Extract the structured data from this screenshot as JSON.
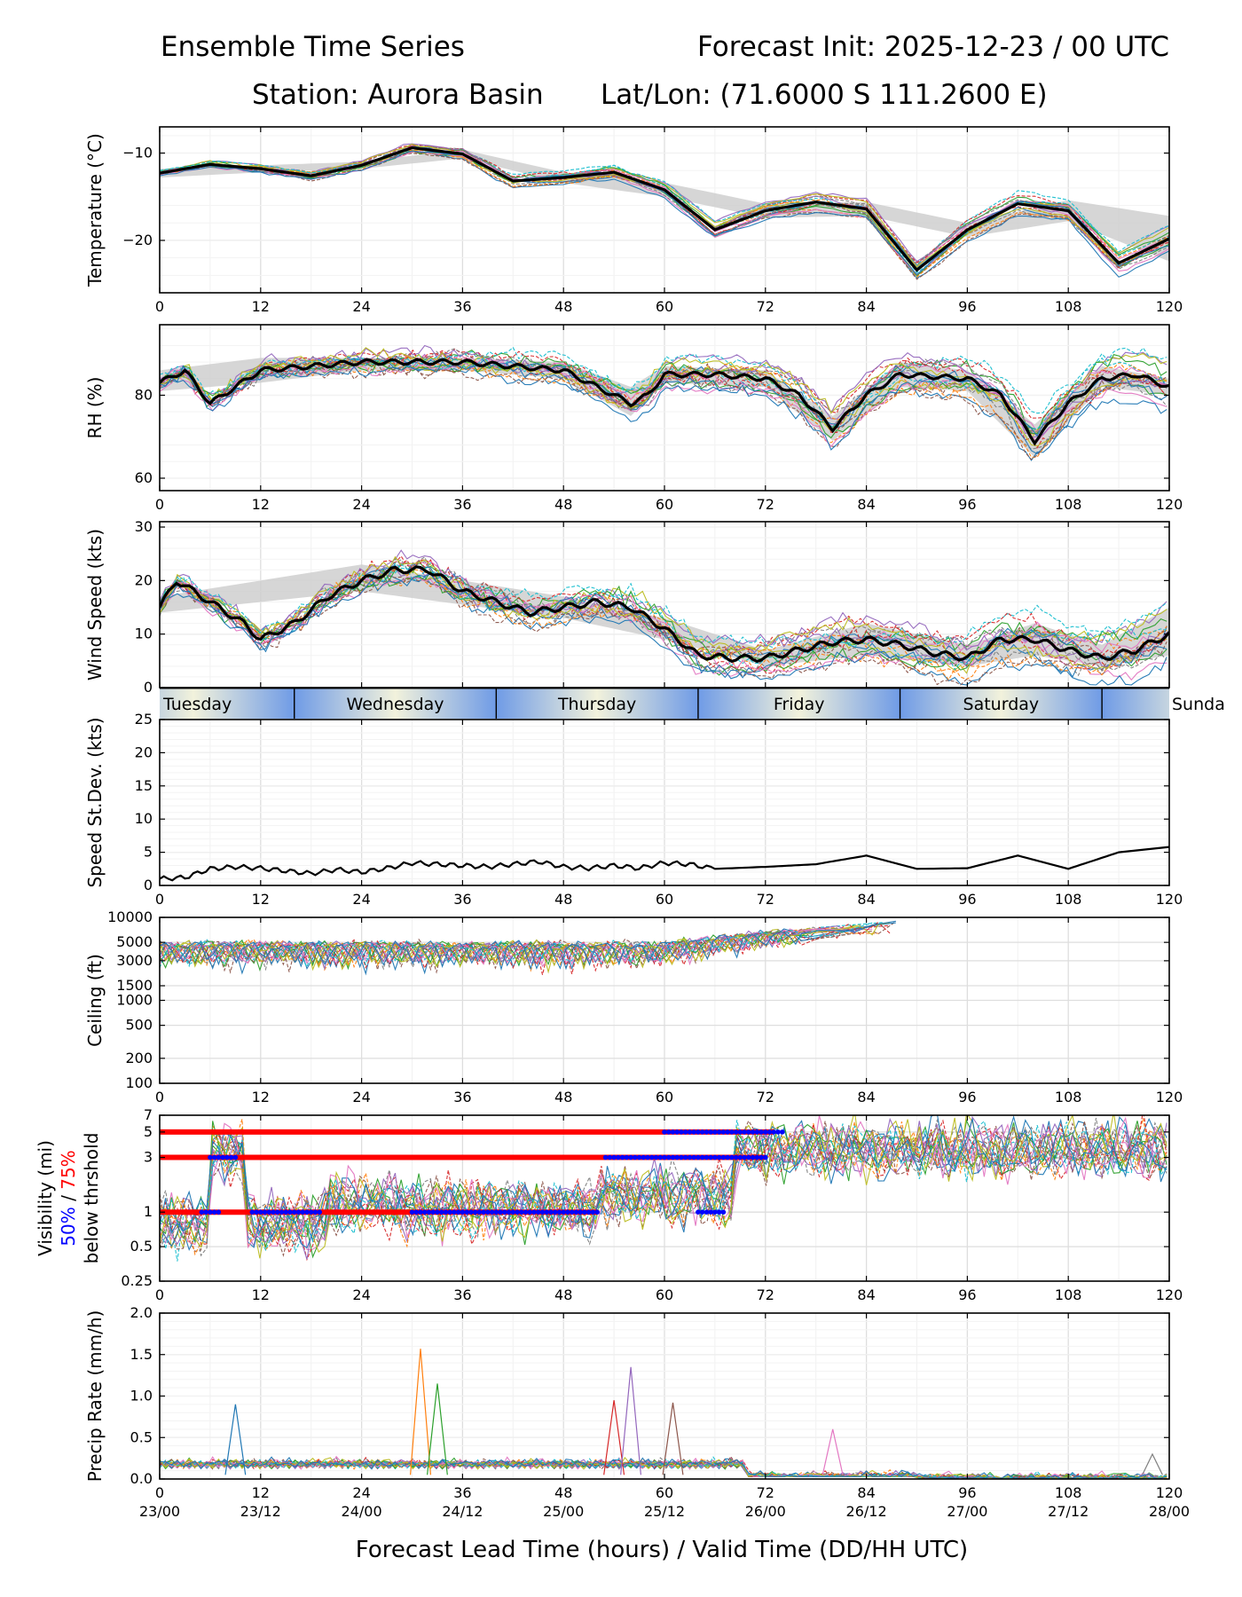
{
  "header": {
    "title_left": "Ensemble Time Series",
    "title_right": "Forecast Init: 2025-12-23 / 00 UTC",
    "station": "Station: Aurora Basin",
    "latlon": "Lat/Lon: (71.6000 S 111.2600 E)"
  },
  "colors": {
    "members": [
      "#1f77b4",
      "#ff7f0e",
      "#2ca02c",
      "#d62728",
      "#9467bd",
      "#8c564b",
      "#e377c2",
      "#7f7f7f",
      "#bcbd22",
      "#17becf"
    ],
    "mean": "#000000",
    "spread": "#cccccc",
    "threshold_50": "#0000ff",
    "threshold_75": "#ff0000",
    "day_light": "#f2f2dc",
    "day_dark": "#6f9be6"
  },
  "xaxis": {
    "lead_ticks": [
      "0",
      "12",
      "24",
      "36",
      "48",
      "60",
      "72",
      "84",
      "96",
      "108",
      "120"
    ],
    "valid_ticks": [
      "23/00",
      "23/12",
      "24/00",
      "24/12",
      "25/00",
      "25/12",
      "26/00",
      "26/12",
      "27/00",
      "27/12",
      "28/00"
    ],
    "label": "Forecast Lead Time (hours) / Valid Time (DD/HH UTC)"
  },
  "days": [
    "Tuesday",
    "Wednesday",
    "Thursday",
    "Friday",
    "Saturday",
    "Sunda"
  ],
  "chart_data": [
    {
      "type": "line",
      "id": "temperature",
      "ylabel": "Temperature (°C)",
      "yscale": "linear",
      "ylim": [
        -26,
        -7
      ],
      "yticks": [
        -10,
        -20
      ],
      "ytick_labels": [
        "−10",
        "−20"
      ],
      "mean": {
        "x": [
          0,
          6,
          12,
          18,
          24,
          30,
          36,
          42,
          48,
          54,
          60,
          66,
          72,
          78,
          84,
          90,
          96,
          102,
          108,
          114,
          120
        ],
        "y": [
          -12.3,
          -11.3,
          -11.8,
          -12.6,
          -11.4,
          -9.4,
          -10.1,
          -13.2,
          -12.8,
          -12.2,
          -14.2,
          -18.8,
          -16.6,
          -15.6,
          -16.4,
          -23.4,
          -18.8,
          -15.8,
          -16.6,
          -22.6,
          -19.8
        ]
      },
      "spread": {
        "x": [
          0,
          12,
          24,
          36,
          48,
          60,
          72,
          84,
          96,
          108,
          120
        ],
        "lo": [
          -12.8,
          -12.2,
          -11.8,
          -10.6,
          -13.4,
          -15.0,
          -17.4,
          -17.2,
          -19.6,
          -17.8,
          -22.4
        ],
        "hi": [
          -11.8,
          -11.4,
          -11.0,
          -9.6,
          -12.2,
          -13.4,
          -15.8,
          -15.6,
          -18.0,
          -15.4,
          -17.2
        ]
      },
      "members_count": 21
    },
    {
      "type": "line",
      "id": "rh",
      "ylabel": "RH (%)",
      "yscale": "linear",
      "ylim": [
        57,
        97
      ],
      "yticks": [
        60,
        80
      ],
      "ytick_labels": [
        "60",
        "80"
      ],
      "mean": {
        "x": [
          0,
          3,
          6,
          9,
          12,
          18,
          24,
          30,
          36,
          42,
          48,
          52,
          56,
          58,
          60,
          66,
          72,
          76,
          80,
          84,
          88,
          96,
          100,
          104,
          108,
          112,
          116,
          120
        ],
        "y": [
          83,
          86,
          78,
          82,
          86,
          87,
          88,
          88,
          88,
          87,
          86,
          82,
          78,
          80,
          85,
          85,
          84,
          80,
          72,
          80,
          85,
          84,
          80,
          69,
          78,
          84,
          85,
          82
        ]
      },
      "spread": {
        "x": [
          0,
          12,
          24,
          36,
          48,
          56,
          60,
          72,
          80,
          88,
          96,
          104,
          112,
          120
        ],
        "lo": [
          81,
          83,
          86,
          86,
          84,
          75,
          83,
          82,
          69,
          82,
          81,
          65,
          82,
          80
        ],
        "hi": [
          86,
          89,
          89,
          89,
          88,
          82,
          87,
          86,
          75,
          88,
          86,
          73,
          87,
          84
        ]
      },
      "members_count": 21
    },
    {
      "type": "line",
      "id": "wind",
      "ylabel": "Wind Speed (kts)",
      "yscale": "linear",
      "ylim": [
        0,
        31
      ],
      "yticks": [
        0,
        10,
        20,
        30
      ],
      "ytick_labels": [
        "0",
        "10",
        "20",
        "30"
      ],
      "mean": {
        "x": [
          0,
          2,
          4,
          6,
          8,
          10,
          12,
          16,
          20,
          24,
          28,
          32,
          36,
          40,
          44,
          48,
          52,
          56,
          60,
          64,
          68,
          72,
          76,
          80,
          84,
          88,
          92,
          96,
          100,
          104,
          108,
          112,
          116,
          120
        ],
        "y": [
          15,
          20,
          18,
          16,
          14,
          12,
          9,
          12,
          17,
          20,
          22,
          22,
          18,
          16,
          14,
          15,
          16,
          15,
          11,
          6,
          5.5,
          5.5,
          7,
          8.5,
          9,
          8,
          6.5,
          5.5,
          9,
          9,
          7,
          5.5,
          7,
          10
        ]
      },
      "spread": {
        "x": [
          0,
          24,
          48,
          60,
          72,
          84,
          96,
          104,
          112,
          120
        ],
        "lo": [
          14,
          18,
          13,
          9,
          4,
          6,
          4,
          6,
          4,
          6
        ],
        "hi": [
          17,
          23,
          17,
          13,
          7,
          12,
          8,
          12,
          8,
          15
        ]
      },
      "members_count": 21
    },
    {
      "type": "line",
      "id": "speed_stdev",
      "ylabel": "Speed St.Dev. (kts)",
      "yscale": "linear",
      "ylim": [
        0,
        25
      ],
      "yticks": [
        0,
        5,
        10,
        15,
        20,
        25
      ],
      "ytick_labels": [
        "0",
        "5",
        "10",
        "15",
        "20",
        "25"
      ],
      "series": [
        {
          "name": "Speed St.Dev.",
          "x": [
            0,
            3,
            6,
            9,
            12,
            15,
            18,
            21,
            24,
            27,
            30,
            33,
            36,
            39,
            42,
            45,
            48,
            51,
            54,
            57,
            60,
            63,
            66,
            72,
            78,
            84,
            90,
            96,
            102,
            108,
            114,
            120
          ],
          "y": [
            1.0,
            1.2,
            2.5,
            2.8,
            2.6,
            2.2,
            1.8,
            2.4,
            2.0,
            2.6,
            3.4,
            3.2,
            3.0,
            2.8,
            3.2,
            3.6,
            2.8,
            2.6,
            3.0,
            2.6,
            3.4,
            3.2,
            2.5,
            2.8,
            3.2,
            4.5,
            2.5,
            2.6,
            4.5,
            2.5,
            5.0,
            5.8
          ]
        }
      ]
    },
    {
      "type": "line",
      "id": "ceiling",
      "ylabel": "Ceiling (ft)",
      "yscale": "log",
      "ylim": [
        100,
        10000
      ],
      "yticks": [
        100,
        200,
        500,
        1000,
        1500,
        3000,
        5000,
        10000
      ],
      "ytick_labels": [
        "100",
        "200",
        "500",
        "1000",
        "1500",
        "3000",
        "5000",
        "10000"
      ],
      "members_count": 21
    },
    {
      "type": "line",
      "id": "visibility",
      "ylabel_lines": [
        "Visibility (mi)",
        "50%",
        " / ",
        "75%",
        "below thrshold"
      ],
      "yscale": "log",
      "ylim": [
        0.25,
        7
      ],
      "yticks": [
        0.25,
        0.5,
        1,
        3,
        5,
        7
      ],
      "ytick_labels": [
        "0.25",
        "0.5",
        "1",
        "3",
        "5",
        "7"
      ],
      "thresholds": [
        {
          "level": 1,
          "red_segments": [
            [
              0,
              52
            ]
          ],
          "blue_segments": [
            [
              5,
              7
            ],
            [
              11,
              19
            ],
            [
              30,
              52
            ],
            [
              64,
              67
            ]
          ]
        },
        {
          "level": 3,
          "red_segments": [
            [
              0,
              72
            ]
          ],
          "blue_segments": [
            [
              6,
              9
            ],
            [
              53,
              72
            ]
          ]
        },
        {
          "level": 5,
          "red_segments": [
            [
              0,
              73
            ]
          ],
          "blue_segments": [
            [
              60,
              74
            ]
          ]
        }
      ],
      "members_count": 21
    },
    {
      "type": "line",
      "id": "precip",
      "ylabel": "Precip Rate (mm/h)",
      "yscale": "linear",
      "ylim": [
        0,
        2
      ],
      "yticks": [
        0.0,
        0.5,
        1.0,
        1.5,
        2.0
      ],
      "ytick_labels": [
        "0.0",
        "0.5",
        "1.0",
        "1.5",
        "2.0"
      ],
      "peaks": [
        {
          "x": 9,
          "y": 0.9
        },
        {
          "x": 31,
          "y": 1.57
        },
        {
          "x": 33,
          "y": 1.15
        },
        {
          "x": 54,
          "y": 0.95
        },
        {
          "x": 56,
          "y": 1.35
        },
        {
          "x": 61,
          "y": 0.92
        },
        {
          "x": 80,
          "y": 0.6
        },
        {
          "x": 118,
          "y": 0.3
        }
      ],
      "members_count": 21
    }
  ]
}
